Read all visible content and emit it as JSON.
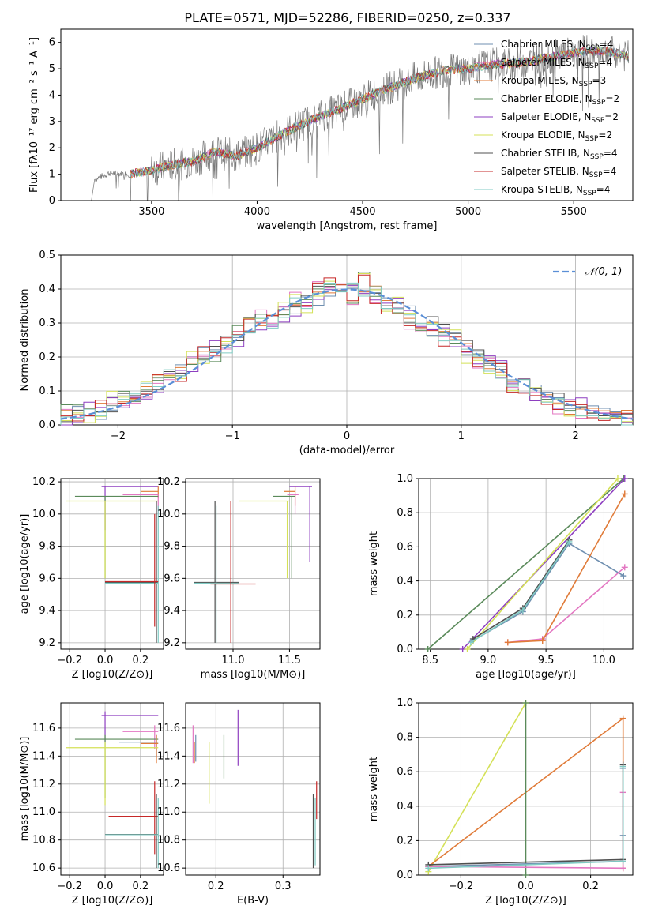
{
  "figure": {
    "title": "PLATE=0571, MJD=52286, FIBERID=0250, z=0.337"
  },
  "chart_data": [
    {
      "id": "spectrum",
      "type": "line",
      "title": "PLATE=0571, MJD=52286, FIBERID=0250, z=0.337",
      "xlabel": "wavelength [Angstrom, rest frame]",
      "ylabel": "Flux [f_λ 10^-17 erg cm^-2 s^-1 A^-1]",
      "xlim": [
        3070,
        5780
      ],
      "ylim": [
        0,
        6.5
      ],
      "xticks": [
        "3500",
        "4000",
        "4500",
        "5000",
        "5500"
      ],
      "yticks": [
        "0",
        "1",
        "2",
        "3",
        "4",
        "5",
        "6"
      ],
      "grid": false,
      "legend_position": "top-right",
      "data_curve": {
        "x": [
          3215,
          3230,
          3300,
          3400,
          3500,
          3600,
          3700,
          3800,
          3900,
          4000,
          4100,
          4200,
          4300,
          4400,
          4500,
          4600,
          4700,
          4800,
          4900,
          5000,
          5100,
          5200,
          5300,
          5400,
          5500,
          5600,
          5700,
          5760
        ],
        "y": [
          0,
          0.8,
          1.05,
          1.0,
          1.15,
          1.35,
          1.5,
          1.85,
          1.7,
          2.0,
          2.45,
          2.85,
          3.2,
          3.5,
          3.85,
          4.2,
          4.5,
          4.75,
          4.95,
          5.0,
          5.15,
          5.2,
          5.3,
          5.45,
          5.6,
          5.7,
          5.6,
          5.45
        ]
      },
      "series": [
        {
          "name": "Chabrier MILES, N_SSP=4",
          "color": "#6f8fb0"
        },
        {
          "name": "Salpeter MILES, N_SSP=4",
          "color": "#e377c2"
        },
        {
          "name": "Kroupa MILES, N_SSP=3",
          "color": "#e07b39"
        },
        {
          "name": "Chabrier ELODIE, N_SSP=2",
          "color": "#5a8a5a"
        },
        {
          "name": "Salpeter ELODIE, N_SSP=2",
          "color": "#8e3fc0"
        },
        {
          "name": "Kroupa ELODIE, N_SSP=2",
          "color": "#d4e157"
        },
        {
          "name": "Chabrier STELIB, N_SSP=4",
          "color": "#505050"
        },
        {
          "name": "Salpeter STELIB, N_SSP=4",
          "color": "#c62828"
        },
        {
          "name": "Kroupa STELIB, N_SSP=4",
          "color": "#80cbc4"
        }
      ],
      "model_curve": {
        "x": [
          3400,
          3500,
          3600,
          3700,
          3800,
          3900,
          4000,
          4100,
          4200,
          4300,
          4400,
          4500,
          4600,
          4700,
          4800,
          4900,
          5000,
          5100,
          5200,
          5300,
          5400,
          5500,
          5600,
          5700,
          5760
        ],
        "y": [
          1.0,
          1.15,
          1.35,
          1.5,
          1.85,
          1.7,
          2.0,
          2.45,
          2.85,
          3.2,
          3.5,
          3.85,
          4.2,
          4.5,
          4.75,
          4.95,
          5.0,
          5.15,
          5.2,
          5.3,
          5.45,
          5.6,
          5.7,
          5.6,
          5.45
        ]
      }
    },
    {
      "id": "residuals",
      "type": "bar",
      "xlabel": "(data-model)/error",
      "ylabel": "Normed distribution",
      "xlim": [
        -2.5,
        2.5
      ],
      "ylim": [
        0,
        0.5
      ],
      "xticks": [
        "−2",
        "−1",
        "0",
        "1",
        "2"
      ],
      "yticks": [
        "0.0",
        "0.1",
        "0.2",
        "0.3",
        "0.4",
        "0.5"
      ],
      "grid": true,
      "legend_position": "top-right",
      "gaussian_label": "𝒩(0, 1)",
      "gaussian_color": "#5b8fd6",
      "bins": [
        -2.5,
        -2.4,
        -2.3,
        -2.2,
        -2.1,
        -2.0,
        -1.9,
        -1.8,
        -1.7,
        -1.6,
        -1.5,
        -1.4,
        -1.3,
        -1.2,
        -1.1,
        -1.0,
        -0.9,
        -0.8,
        -0.7,
        -0.6,
        -0.5,
        -0.4,
        -0.3,
        -0.2,
        -0.1,
        0.0,
        0.1,
        0.2,
        0.3,
        0.4,
        0.5,
        0.6,
        0.7,
        0.8,
        0.9,
        1.0,
        1.1,
        1.2,
        1.3,
        1.4,
        1.5,
        1.6,
        1.7,
        1.8,
        1.9,
        2.0,
        2.1,
        2.2,
        2.3,
        2.4
      ],
      "histogram_values": [
        [
          0.02,
          0.03,
          0.04,
          0.04,
          0.06,
          0.07,
          0.09,
          0.1,
          0.12,
          0.15,
          0.17,
          0.18,
          0.2,
          0.22,
          0.24,
          0.26,
          0.28,
          0.3,
          0.31,
          0.33,
          0.35,
          0.36,
          0.38,
          0.39,
          0.4,
          0.4,
          0.39,
          0.38,
          0.36,
          0.35,
          0.33,
          0.31,
          0.29,
          0.27,
          0.25,
          0.23,
          0.2,
          0.18,
          0.16,
          0.14,
          0.12,
          0.1,
          0.09,
          0.07,
          0.06,
          0.05,
          0.04,
          0.03,
          0.03,
          0.02
        ],
        [
          0.03,
          0.04,
          0.03,
          0.05,
          0.07,
          0.08,
          0.08,
          0.11,
          0.13,
          0.14,
          0.15,
          0.19,
          0.21,
          0.21,
          0.23,
          0.27,
          0.29,
          0.31,
          0.3,
          0.34,
          0.37,
          0.35,
          0.4,
          0.41,
          0.39,
          0.38,
          0.42,
          0.37,
          0.34,
          0.36,
          0.31,
          0.3,
          0.29,
          0.26,
          0.25,
          0.21,
          0.19,
          0.17,
          0.16,
          0.12,
          0.11,
          0.09,
          0.08,
          0.06,
          0.05,
          0.04,
          0.03,
          0.02,
          0.02,
          0.01
        ]
      ],
      "series_colors": [
        "#6f8fb0",
        "#e377c2",
        "#e07b39",
        "#5a8a5a",
        "#8e3fc0",
        "#d4e157",
        "#505050",
        "#c62828",
        "#80cbc4"
      ]
    },
    {
      "id": "age-vs-z",
      "type": "scatter",
      "xlabel": "Z [log10(Z/Z⊙)]",
      "ylabel": "age  [log10(age/yr)]",
      "xlim": [
        -0.25,
        0.33
      ],
      "ylim": [
        9.16,
        10.22
      ],
      "xticks": [
        "−0.2",
        "0.0",
        "0.2"
      ],
      "yticks": [
        "9.2",
        "9.4",
        "9.6",
        "9.8",
        "10.0",
        "10.2"
      ],
      "grid": true
    },
    {
      "id": "age-vs-mass",
      "type": "scatter",
      "xlabel": "mass [log10(M/M⊙)]",
      "ylabel": "",
      "xlim": [
        10.58,
        11.77
      ],
      "ylim": [
        9.16,
        10.22
      ],
      "xticks": [
        "11.0",
        "11.5"
      ],
      "yticks": [
        "9.2",
        "9.4",
        "9.6",
        "9.8",
        "10.0",
        "10.2"
      ],
      "grid": true
    },
    {
      "id": "mass-weight-vs-age",
      "type": "line",
      "xlabel": "age  [log10(age/yr)]",
      "ylabel": "mass weight",
      "xlim": [
        8.4,
        10.25
      ],
      "ylim": [
        0,
        1
      ],
      "xticks": [
        "8.5",
        "9.0",
        "9.5",
        "10.0"
      ],
      "yticks": [
        "0.0",
        "0.2",
        "0.4",
        "0.6",
        "0.8",
        "1.0"
      ],
      "grid": true,
      "series": [
        {
          "color": "#6f8fb0",
          "x": [
            8.87,
            9.3,
            9.7,
            10.17
          ],
          "y": [
            0.05,
            0.22,
            0.62,
            0.43
          ]
        },
        {
          "color": "#e377c2",
          "x": [
            9.17,
            9.47,
            10.18
          ],
          "y": [
            0.04,
            0.06,
            0.48
          ]
        },
        {
          "color": "#e07b39",
          "x": [
            9.17,
            9.47,
            10.18
          ],
          "y": [
            0.04,
            0.05,
            0.91
          ]
        },
        {
          "color": "#5a8a5a",
          "x": [
            8.48,
            10.17
          ],
          "y": [
            0.0,
            1.0
          ]
        },
        {
          "color": "#8e3fc0",
          "x": [
            8.78,
            10.18
          ],
          "y": [
            0.0,
            1.0
          ]
        },
        {
          "color": "#d4e157",
          "x": [
            8.82,
            10.12
          ],
          "y": [
            0.0,
            1.0
          ]
        },
        {
          "color": "#505050",
          "x": [
            8.87,
            9.3,
            9.7
          ],
          "y": [
            0.06,
            0.24,
            0.64
          ]
        },
        {
          "color": "#80cbc4",
          "x": [
            8.85,
            9.3,
            9.7
          ],
          "y": [
            0.04,
            0.23,
            0.63
          ]
        }
      ]
    },
    {
      "id": "mass-vs-z",
      "type": "scatter",
      "xlabel": "Z [log10(Z/Z⊙)]",
      "ylabel": "mass [log10(M/M⊙)]",
      "xlim": [
        -0.25,
        0.33
      ],
      "ylim": [
        10.55,
        11.78
      ],
      "xticks": [
        "−0.2",
        "0.0",
        "0.2"
      ],
      "yticks": [
        "10.6",
        "10.8",
        "11.0",
        "11.2",
        "11.4",
        "11.6"
      ],
      "grid": true
    },
    {
      "id": "mass-vs-ebv",
      "type": "scatter",
      "xlabel": "E(B-V)",
      "ylabel": "",
      "xlim": [
        0.155,
        0.355
      ],
      "ylim": [
        10.55,
        11.78
      ],
      "xticks": [
        "0.2",
        "0.3"
      ],
      "yticks": [
        "10.6",
        "10.8",
        "11.0",
        "11.2",
        "11.4",
        "11.6"
      ],
      "grid": true
    },
    {
      "id": "mass-weight-vs-z",
      "type": "line",
      "xlabel": "Z [log10(Z/Z⊙)]",
      "ylabel": "mass weight",
      "xlim": [
        -0.33,
        0.33
      ],
      "ylim": [
        0,
        1
      ],
      "xticks": [
        "−0.2",
        "0.0",
        "0.2"
      ],
      "yticks": [
        "0.0",
        "0.2",
        "0.4",
        "0.6",
        "0.8",
        "1.0"
      ],
      "grid": true,
      "series": [
        {
          "color": "#d4e157",
          "x": [
            -0.3,
            0.0
          ],
          "y": [
            0.02,
            1.0
          ]
        },
        {
          "color": "#e07b39",
          "x": [
            -0.3,
            0.3,
            0.3
          ],
          "y": [
            0.05,
            0.91,
            0.04
          ]
        },
        {
          "color": "#5a8a5a",
          "x": [
            0.0,
            0.0
          ],
          "y": [
            0.0,
            1.0
          ]
        },
        {
          "color": "#6f8fb0",
          "x": [
            -0.3,
            0.3,
            0.3,
            0.3
          ],
          "y": [
            0.05,
            0.08,
            0.23,
            0.62
          ]
        },
        {
          "color": "#e377c2",
          "x": [
            -0.3,
            0.3,
            0.3
          ],
          "y": [
            0.05,
            0.04,
            0.48
          ]
        },
        {
          "color": "#505050",
          "x": [
            -0.3,
            0.3,
            0.3
          ],
          "y": [
            0.06,
            0.09,
            0.64
          ]
        },
        {
          "color": "#80cbc4",
          "x": [
            -0.3,
            0.3,
            0.3
          ],
          "y": [
            0.04,
            0.08,
            0.63
          ]
        }
      ]
    }
  ]
}
